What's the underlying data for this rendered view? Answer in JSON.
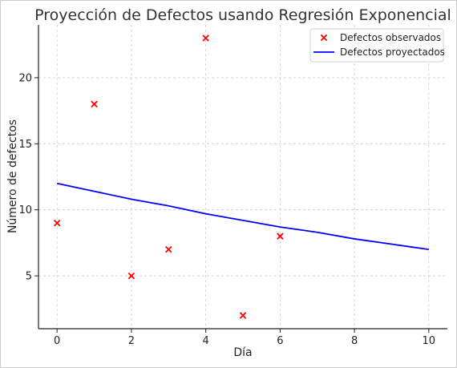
{
  "chart_data": {
    "type": "scatter",
    "title": "Proyección de Defectos usando Regresión Exponencial",
    "xlabel": "Día",
    "ylabel": "Número de defectos",
    "xlim": [
      -0.5,
      10.5
    ],
    "ylim": [
      1,
      24
    ],
    "x_ticks": [
      0,
      2,
      4,
      6,
      8,
      10
    ],
    "y_ticks": [
      5,
      10,
      15,
      20
    ],
    "grid": true,
    "legend_position": "top-right",
    "series": [
      {
        "name": "Defectos observados",
        "kind": "scatter",
        "marker": "x",
        "color": "#ff0000",
        "x": [
          0,
          1,
          2,
          3,
          4,
          5,
          6
        ],
        "y": [
          9,
          18,
          5,
          7,
          23,
          2,
          8
        ]
      },
      {
        "name": "Defectos proyectados",
        "kind": "line",
        "color": "#0000ff",
        "x": [
          0,
          1,
          2,
          3,
          4,
          5,
          6,
          7,
          8,
          9,
          10
        ],
        "y": [
          12.0,
          11.4,
          10.8,
          10.3,
          9.7,
          9.2,
          8.7,
          8.3,
          7.8,
          7.4,
          7.0
        ]
      }
    ]
  }
}
